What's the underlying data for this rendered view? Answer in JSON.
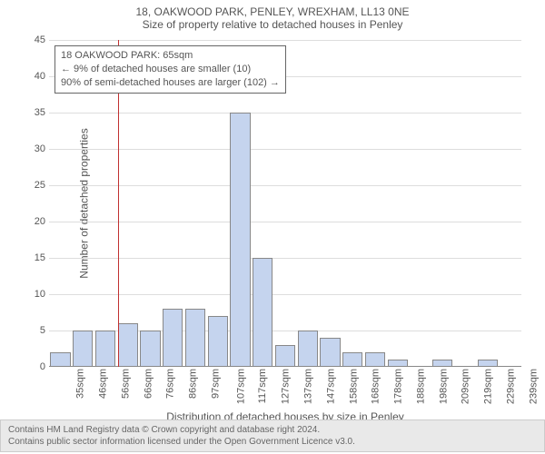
{
  "title": "18, OAKWOOD PARK, PENLEY, WREXHAM, LL13 0NE",
  "subtitle": "Size of property relative to detached houses in Penley",
  "ylabel": "Number of detached properties",
  "xlabel": "Distribution of detached houses by size in Penley",
  "chart": {
    "type": "histogram",
    "ylim": [
      0,
      45
    ],
    "ytick_step": 5,
    "bar_color": "#c5d4ee",
    "bar_border": "#888888",
    "grid_color": "#dddddd",
    "background_color": "#ffffff",
    "marker_color": "#c03030",
    "marker_x_category_index": 3,
    "x_categories": [
      "35sqm",
      "46sqm",
      "56sqm",
      "66sqm",
      "76sqm",
      "86sqm",
      "97sqm",
      "107sqm",
      "117sqm",
      "127sqm",
      "137sqm",
      "147sqm",
      "158sqm",
      "168sqm",
      "178sqm",
      "188sqm",
      "198sqm",
      "209sqm",
      "219sqm",
      "229sqm",
      "239sqm"
    ],
    "values": [
      2,
      5,
      5,
      6,
      5,
      8,
      8,
      7,
      35,
      15,
      3,
      5,
      4,
      2,
      2,
      1,
      0,
      1,
      0,
      1,
      0
    ]
  },
  "annotation": {
    "line1": "18 OAKWOOD PARK: 65sqm",
    "line2": "← 9% of detached houses are smaller (10)",
    "line3": "90% of semi-detached houses are larger (102) →"
  },
  "footer": {
    "line1": "Contains HM Land Registry data © Crown copyright and database right 2024.",
    "line2": "Contains public sector information licensed under the Open Government Licence v3.0."
  }
}
